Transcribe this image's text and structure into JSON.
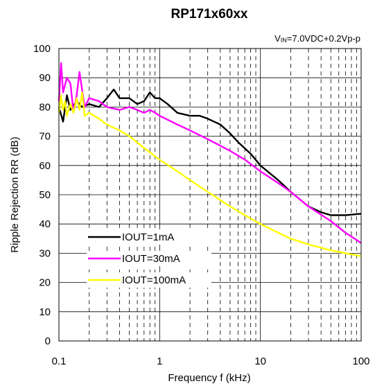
{
  "chart_data": {
    "type": "line",
    "title": "RP171x60xx",
    "condition": {
      "prefix": "V",
      "subscript": "IN",
      "suffix": "=7.0VDC+0.2Vp-p"
    },
    "xlabel": "Frequency f (kHz)",
    "ylabel": "Ripple Rejection RR (dB)",
    "xscale": "log",
    "xlim": [
      0.1,
      100
    ],
    "ylim": [
      0,
      100
    ],
    "x_ticks": [
      0.1,
      1,
      10,
      100
    ],
    "x_tick_labels": [
      "0.1",
      "1",
      "10",
      "100"
    ],
    "y_ticks": [
      0,
      10,
      20,
      30,
      40,
      50,
      60,
      70,
      80,
      90,
      100
    ],
    "y_tick_labels": [
      "0",
      "10",
      "20",
      "30",
      "40",
      "50",
      "60",
      "70",
      "80",
      "90",
      "100"
    ],
    "grid": true,
    "legend_position": "lower-left",
    "series": [
      {
        "name": "IOUT=1mA",
        "color": "#000000",
        "x": [
          0.1,
          0.11,
          0.12,
          0.13,
          0.15,
          0.17,
          0.2,
          0.25,
          0.3,
          0.35,
          0.4,
          0.5,
          0.6,
          0.7,
          0.8,
          0.9,
          1,
          1.2,
          1.5,
          2,
          2.5,
          3,
          4,
          5,
          6,
          8,
          10,
          15,
          20,
          30,
          40,
          50,
          70,
          100
        ],
        "y": [
          80,
          75,
          84,
          79,
          82,
          80,
          81,
          80,
          83,
          86,
          83,
          83,
          81,
          82,
          85,
          83,
          83,
          81,
          78,
          77,
          77,
          76,
          74,
          71,
          68,
          64,
          60,
          55,
          51,
          46,
          44,
          43,
          43,
          43.5
        ]
      },
      {
        "name": "IOUT=30mA",
        "color": "#ff00ff",
        "x": [
          0.1,
          0.105,
          0.11,
          0.12,
          0.13,
          0.14,
          0.15,
          0.16,
          0.18,
          0.2,
          0.25,
          0.3,
          0.4,
          0.5,
          0.6,
          0.7,
          0.8,
          0.9,
          1,
          1.5,
          2,
          3,
          5,
          7,
          10,
          15,
          20,
          30,
          50,
          70,
          100
        ],
        "y": [
          82,
          95,
          85,
          90,
          88,
          78,
          84,
          92,
          80,
          83,
          82,
          80,
          79,
          80,
          79,
          78,
          79,
          78,
          77,
          74,
          72,
          69,
          65,
          62,
          58,
          54,
          51,
          46,
          41,
          37,
          33.5
        ]
      },
      {
        "name": "IOUT=100mA",
        "color": "#ffff00",
        "x": [
          0.1,
          0.105,
          0.11,
          0.115,
          0.12,
          0.13,
          0.14,
          0.15,
          0.16,
          0.17,
          0.18,
          0.2,
          0.25,
          0.3,
          0.4,
          0.5,
          0.7,
          1,
          1.5,
          2,
          3,
          5,
          7,
          10,
          15,
          20,
          30,
          50,
          70,
          100
        ],
        "y": [
          78,
          84,
          79,
          82,
          77,
          81,
          78,
          83,
          79,
          85,
          77,
          78,
          76,
          74,
          72,
          70,
          66,
          62,
          58,
          55,
          51,
          46,
          43,
          40,
          37,
          35,
          33,
          31,
          30,
          29
        ]
      }
    ]
  }
}
